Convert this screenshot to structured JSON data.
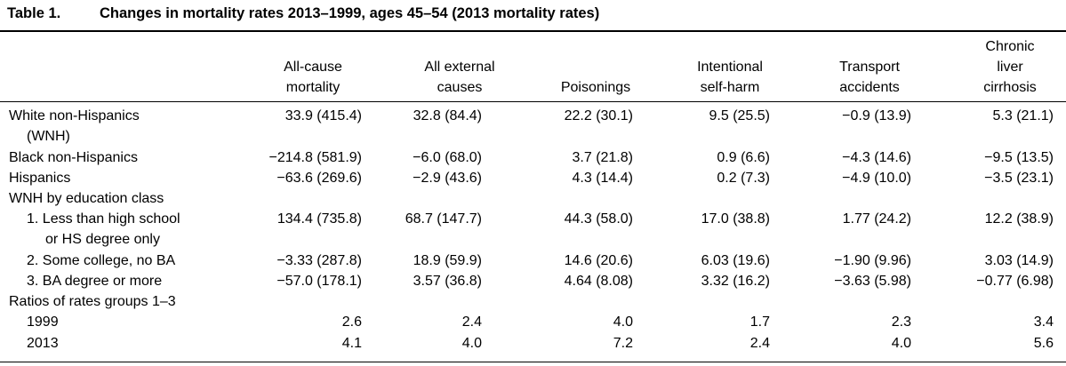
{
  "table": {
    "number": "Table 1.",
    "title": "Changes in mortality rates 2013–1999, ages 45–54 (2013 mortality rates)"
  },
  "headers": [
    [
      "All-cause",
      "mortality"
    ],
    [
      "All external",
      "causes"
    ],
    [
      "Poisonings"
    ],
    [
      "Intentional",
      "self-harm"
    ],
    [
      "Transport",
      "accidents"
    ],
    [
      "Chronic",
      "liver",
      "cirrhosis"
    ]
  ],
  "rows": {
    "wnh": {
      "label1": "White non-Hispanics",
      "label2": "(WNH)",
      "values": [
        "33.9 (415.4)",
        "32.8 (84.4)",
        "22.2 (30.1)",
        "9.5 (25.5)",
        "−0.9 (13.9)",
        "5.3 (21.1)"
      ]
    },
    "bnh": {
      "label": "Black non-Hispanics",
      "values": [
        "−214.8 (581.9)",
        "−6.0 (68.0)",
        "3.7 (21.8)",
        "0.9 (6.6)",
        "−4.3 (14.6)",
        "−9.5 (13.5)"
      ]
    },
    "hisp": {
      "label": "Hispanics",
      "values": [
        "−63.6 (269.6)",
        "−2.9 (43.6)",
        "4.3 (14.4)",
        "0.2 (7.3)",
        "−4.9 (10.0)",
        "−3.5 (23.1)"
      ]
    },
    "edu_header": {
      "label": "WNH by education class"
    },
    "edu1": {
      "label1": "1. Less than high school",
      "label2": "or HS degree only",
      "values": [
        "134.4 (735.8)",
        "68.7 (147.7)",
        "44.3 (58.0)",
        "17.0 (38.8)",
        "1.77 (24.2)",
        "12.2 (38.9)"
      ]
    },
    "edu2": {
      "label": "2. Some college, no BA",
      "values": [
        "−3.33 (287.8)",
        "18.9 (59.9)",
        "14.6 (20.6)",
        "6.03 (19.6)",
        "−1.90 (9.96)",
        "3.03 (14.9)"
      ]
    },
    "edu3": {
      "label": "3. BA degree or more",
      "values": [
        "−57.0 (178.1)",
        "3.57 (36.8)",
        "4.64 (8.08)",
        "3.32 (16.2)",
        "−3.63 (5.98)",
        "−0.77 (6.98)"
      ]
    },
    "ratio_header": {
      "label": "Ratios of rates groups 1–3"
    },
    "r1999": {
      "label": "1999",
      "values": [
        "2.6",
        "2.4",
        "4.0",
        "1.7",
        "2.3",
        "3.4"
      ]
    },
    "r2013": {
      "label": "2013",
      "values": [
        "4.1",
        "4.0",
        "7.2",
        "2.4",
        "4.0",
        "5.6"
      ]
    }
  }
}
